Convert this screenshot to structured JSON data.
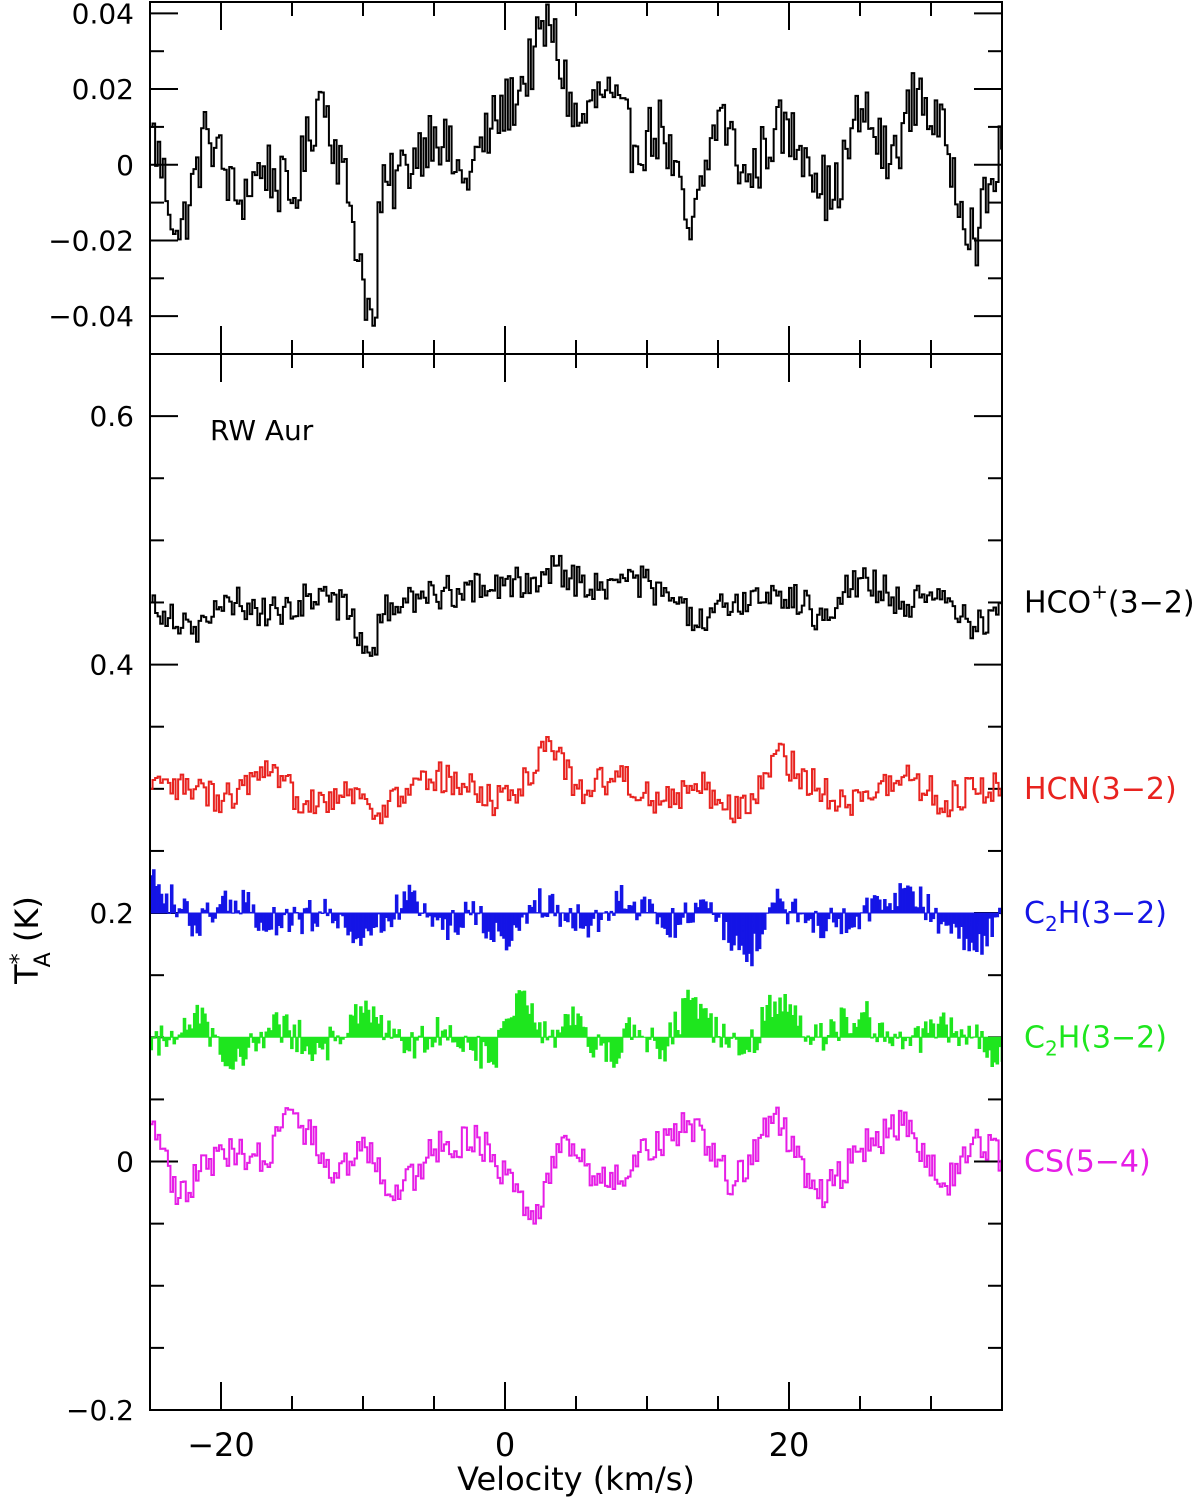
{
  "chart_data": [
    {
      "type": "line",
      "panel": "top",
      "xlim": [
        -25,
        35
      ],
      "ylim": [
        -0.05,
        0.043
      ],
      "y_ticks": [
        {
          "value": 0.04,
          "label": "0.04"
        },
        {
          "value": 0.02,
          "label": "0.02"
        },
        {
          "value": 0,
          "label": "0"
        },
        {
          "value": -0.02,
          "label": "−0.02"
        },
        {
          "value": -0.04,
          "label": "−0.04"
        }
      ],
      "x_major_ticks": [
        -20,
        0,
        20
      ],
      "x_minor_ticks": [
        -15,
        -10,
        -5,
        5,
        10,
        15,
        25,
        30
      ],
      "series": [
        {
          "color": "#000000",
          "style": "step",
          "x": [
            -25,
            -23,
            -21,
            -19,
            -17,
            -15,
            -13,
            -11,
            -9.2,
            -9,
            -7,
            -5,
            -3,
            -1,
            1,
            3,
            5,
            7,
            9,
            11,
            13,
            15,
            17,
            19,
            21,
            23,
            25,
            27,
            29,
            31,
            33,
            35
          ],
          "y": [
            0.01,
            -0.02,
            0.01,
            -0.01,
            0.0,
            -0.01,
            0.02,
            -0.01,
            -0.048,
            -0.01,
            0.0,
            0.01,
            -0.005,
            0.01,
            0.02,
            0.038,
            0.01,
            0.02,
            0.005,
            0.01,
            -0.02,
            0.015,
            -0.005,
            0.01,
            0.005,
            -0.01,
            0.015,
            0.0,
            0.02,
            0.005,
            -0.02,
            0.005
          ]
        }
      ]
    },
    {
      "type": "line",
      "panel": "bottom",
      "xlim": [
        -25,
        35
      ],
      "ylim": [
        -0.2,
        0.65
      ],
      "xlabel": "Velocity (km/s)",
      "ylabel": {
        "base": "T",
        "sup": "*",
        "sub": "A",
        "unit": " (K)"
      },
      "y_ticks": [
        {
          "value": 0.6,
          "label": "0.6"
        },
        {
          "value": 0.4,
          "label": "0.4"
        },
        {
          "value": 0.2,
          "label": "0.2"
        },
        {
          "value": 0,
          "label": "0"
        },
        {
          "value": -0.2,
          "label": "−0.2"
        }
      ],
      "y_minor_ticks": [
        0.55,
        0.5,
        0.45,
        0.35,
        0.3,
        0.25,
        0.15,
        0.1,
        0.05,
        -0.05,
        -0.1,
        -0.15
      ],
      "x_major_ticks": [
        -20,
        0,
        20
      ],
      "x_minor_ticks": [
        -15,
        -10,
        -5,
        5,
        10,
        15,
        25,
        30
      ],
      "x_tick_labels": [
        {
          "value": -20,
          "label": "−20"
        },
        {
          "value": 0,
          "label": "0"
        },
        {
          "value": 20,
          "label": "20"
        }
      ],
      "annotation": "RW Aur",
      "series": [
        {
          "name": "HCO+(3-2)",
          "label": {
            "main": "HCO",
            "sup": "+",
            "rest": "(3−2)"
          },
          "color": "#000000",
          "style": "step",
          "baseline": 0.45,
          "x": [
            -25,
            -22,
            -19,
            -16,
            -13,
            -11,
            -9.2,
            -9,
            -7,
            -4,
            -1,
            2,
            3.5,
            6,
            9,
            12,
            13.5,
            16,
            19,
            22,
            25,
            28,
            31,
            33,
            35
          ],
          "y": [
            0.45,
            0.43,
            0.45,
            0.44,
            0.46,
            0.44,
            0.4,
            0.44,
            0.45,
            0.46,
            0.46,
            0.47,
            0.48,
            0.46,
            0.47,
            0.45,
            0.43,
            0.45,
            0.46,
            0.44,
            0.47,
            0.45,
            0.45,
            0.43,
            0.45
          ]
        },
        {
          "name": "HCN(3-2)",
          "label": {
            "main": "HCN(3−2)"
          },
          "color": "#e8231f",
          "style": "step",
          "baseline": 0.3,
          "x": [
            -25,
            -22,
            -20,
            -17,
            -14,
            -11,
            -9,
            -7,
            -4,
            -1,
            1,
            3,
            5,
            8,
            11,
            14,
            17,
            19,
            22,
            25,
            28,
            31,
            33,
            35
          ],
          "y": [
            0.3,
            0.3,
            0.29,
            0.31,
            0.29,
            0.3,
            0.28,
            0.3,
            0.31,
            0.29,
            0.3,
            0.34,
            0.3,
            0.31,
            0.29,
            0.3,
            0.28,
            0.33,
            0.3,
            0.29,
            0.31,
            0.29,
            0.3,
            0.3
          ]
        },
        {
          "name": "C2H(3-2)",
          "label": {
            "main": "C",
            "sub": "2",
            "rest": "H(3−2)"
          },
          "color": "#1515e6",
          "style": "bars",
          "baseline": 0.2,
          "x": [
            -25,
            -22,
            -19,
            -16,
            -13,
            -10,
            -7,
            -4,
            -2,
            0,
            2,
            4,
            6,
            8,
            10,
            12,
            14,
            17,
            19,
            22,
            25,
            28,
            31,
            33,
            35
          ],
          "y": [
            0.23,
            0.19,
            0.21,
            0.19,
            0.2,
            0.18,
            0.21,
            0.19,
            0.2,
            0.17,
            0.21,
            0.2,
            0.19,
            0.21,
            0.2,
            0.19,
            0.21,
            0.16,
            0.21,
            0.19,
            0.2,
            0.22,
            0.19,
            0.17,
            0.2
          ]
        },
        {
          "name": "C2H(3-2)",
          "label": {
            "main": "C",
            "sub": "2",
            "rest": "H(3−2)"
          },
          "color": "#1ee61e",
          "style": "bars",
          "baseline": 0.1,
          "x": [
            -25,
            -22,
            -19,
            -16,
            -13,
            -10,
            -7,
            -4,
            -1,
            1,
            3,
            5,
            7,
            9,
            11,
            13,
            15,
            17,
            19,
            22,
            25,
            28,
            31,
            33,
            35
          ],
          "y": [
            0.09,
            0.12,
            0.08,
            0.11,
            0.09,
            0.12,
            0.09,
            0.11,
            0.08,
            0.14,
            0.1,
            0.12,
            0.08,
            0.11,
            0.09,
            0.13,
            0.1,
            0.09,
            0.13,
            0.1,
            0.12,
            0.09,
            0.11,
            0.1,
            0.08
          ]
        },
        {
          "name": "CS(5-4)",
          "label": {
            "main": "CS(5−4)"
          },
          "color": "#e61ee6",
          "style": "step",
          "baseline": 0.0,
          "x": [
            -25,
            -23,
            -20,
            -17,
            -15,
            -12,
            -10,
            -8,
            -5,
            -2,
            0,
            2,
            4,
            7,
            10,
            13,
            16,
            19,
            22,
            25,
            28,
            31,
            33,
            35
          ],
          "y": [
            0.03,
            -0.03,
            0.01,
            0.0,
            0.04,
            -0.01,
            0.02,
            -0.03,
            0.01,
            0.02,
            -0.01,
            -0.05,
            0.02,
            -0.02,
            0.01,
            0.03,
            -0.02,
            0.04,
            -0.03,
            0.01,
            0.03,
            -0.02,
            0.02,
            0.0
          ]
        }
      ]
    }
  ]
}
